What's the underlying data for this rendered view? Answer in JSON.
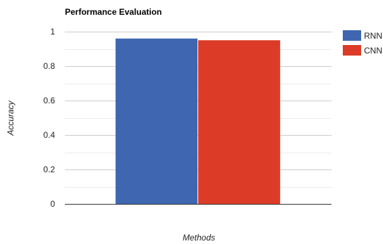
{
  "chart_data": {
    "type": "bar",
    "title": "Performance Evaluation",
    "xlabel": "Methods",
    "ylabel": "Accuracy",
    "categories": [
      ""
    ],
    "series": [
      {
        "name": "RNN",
        "values": [
          0.96
        ],
        "color": "#3f67b1"
      },
      {
        "name": "CNN",
        "values": [
          0.95
        ],
        "color": "#dc3c27"
      }
    ],
    "ylim": [
      0,
      1
    ],
    "yticks": [
      0,
      0.2,
      0.4,
      0.6,
      0.8,
      1
    ],
    "ytick_labels": [
      "0",
      "0.2",
      "0.4",
      "0.6",
      "0.8",
      "1"
    ],
    "grid": true,
    "legend_position": "right"
  }
}
